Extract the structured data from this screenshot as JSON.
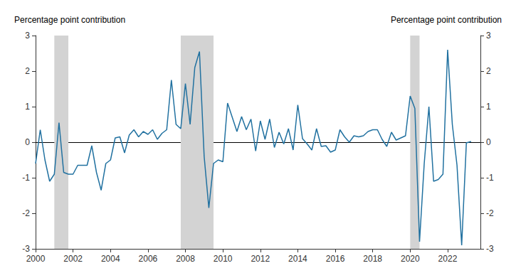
{
  "chart_data": {
    "type": "line",
    "ylabel": "Percentage point contribution",
    "y2label": "Percentage point contribution",
    "color": "#2171a0",
    "grid": false,
    "recession_color": "#d3d3d3",
    "recessions": [
      [
        2001.0,
        2001.75
      ],
      [
        2007.75,
        2009.5
      ],
      [
        2020.0,
        2020.5
      ]
    ],
    "xlim": [
      2000,
      2023.75
    ],
    "xticks": [
      2000,
      2002,
      2004,
      2006,
      2008,
      2010,
      2012,
      2014,
      2016,
      2018,
      2020,
      2022
    ],
    "ylim": [
      -3,
      3
    ],
    "yticks": [
      -3,
      -2,
      -1,
      0,
      1,
      2,
      3
    ],
    "y2lim": [
      -3,
      3
    ],
    "y2ticks": [
      -3,
      -2,
      -1,
      0,
      1,
      2,
      3
    ],
    "x": [
      2000.0,
      2000.25,
      2000.5,
      2000.75,
      2001.0,
      2001.25,
      2001.5,
      2001.75,
      2002.0,
      2002.25,
      2002.5,
      2002.75,
      2003.0,
      2003.25,
      2003.5,
      2003.75,
      2004.0,
      2004.25,
      2004.5,
      2004.75,
      2005.0,
      2005.25,
      2005.5,
      2005.75,
      2006.0,
      2006.25,
      2006.5,
      2006.75,
      2007.0,
      2007.25,
      2007.5,
      2007.75,
      2008.0,
      2008.25,
      2008.5,
      2008.75,
      2009.0,
      2009.25,
      2009.5,
      2009.75,
      2010.0,
      2010.25,
      2010.5,
      2010.75,
      2011.0,
      2011.25,
      2011.5,
      2011.75,
      2012.0,
      2012.25,
      2012.5,
      2012.75,
      2013.0,
      2013.25,
      2013.5,
      2013.75,
      2014.0,
      2014.25,
      2014.5,
      2014.75,
      2015.0,
      2015.25,
      2015.5,
      2015.75,
      2016.0,
      2016.25,
      2016.5,
      2016.75,
      2017.0,
      2017.25,
      2017.5,
      2017.75,
      2018.0,
      2018.25,
      2018.5,
      2018.75,
      2019.0,
      2019.25,
      2019.5,
      2019.75,
      2020.0,
      2020.25,
      2020.5,
      2020.75,
      2021.0,
      2021.25,
      2021.5,
      2021.75,
      2022.0,
      2022.25,
      2022.5,
      2022.75,
      2023.0,
      2023.25
    ],
    "values": [
      -0.6,
      0.35,
      -0.5,
      -1.1,
      -0.9,
      0.55,
      -0.85,
      -0.9,
      -0.9,
      -0.65,
      -0.65,
      -0.65,
      -0.1,
      -0.85,
      -1.35,
      -0.6,
      -0.5,
      0.12,
      0.15,
      -0.3,
      0.2,
      0.35,
      0.15,
      0.3,
      0.22,
      0.35,
      0.08,
      0.25,
      0.35,
      1.75,
      0.5,
      0.38,
      1.65,
      0.5,
      2.1,
      2.55,
      -0.4,
      -1.85,
      -0.6,
      -0.5,
      -0.55,
      1.1,
      0.7,
      0.3,
      0.72,
      0.35,
      0.65,
      -0.25,
      0.6,
      0.08,
      0.65,
      -0.15,
      0.28,
      -0.05,
      0.38,
      -0.22,
      1.05,
      0.1,
      -0.05,
      -0.22,
      0.38,
      -0.12,
      -0.1,
      -0.28,
      -0.22,
      0.35,
      0.15,
      0.0,
      0.18,
      0.15,
      0.18,
      0.3,
      0.35,
      0.35,
      0.08,
      -0.12,
      0.28,
      0.06,
      0.12,
      0.18,
      1.3,
      0.95,
      -2.8,
      -0.6,
      1.0,
      -1.1,
      -1.05,
      -0.9,
      2.6,
      0.5,
      -0.65,
      -2.9,
      -0.02,
      0.02
    ]
  }
}
